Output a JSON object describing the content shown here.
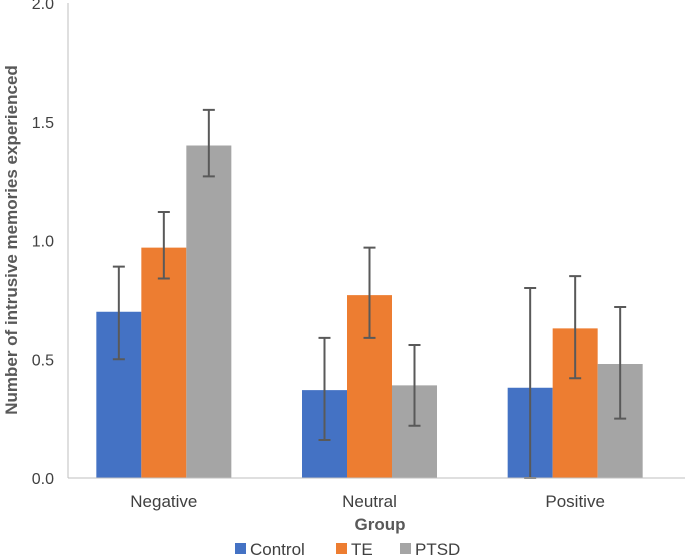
{
  "chart_data": {
    "type": "bar",
    "title": "",
    "xlabel": "Group",
    "ylabel": "Number of intrusive memories experienced",
    "categories": [
      "Negative",
      "Neutral",
      "Positive"
    ],
    "series": [
      {
        "name": "Control",
        "color": "#4472C4",
        "values": [
          0.7,
          0.37,
          0.38
        ],
        "error_low": [
          0.5,
          0.16,
          0.0
        ],
        "error_high": [
          0.89,
          0.59,
          0.8
        ]
      },
      {
        "name": "TE",
        "color": "#ED7D31",
        "values": [
          0.97,
          0.77,
          0.63
        ],
        "error_low": [
          0.84,
          0.59,
          0.42
        ],
        "error_high": [
          1.12,
          0.97,
          0.85
        ]
      },
      {
        "name": "PTSD",
        "color": "#A5A5A5",
        "values": [
          1.4,
          0.39,
          0.48
        ],
        "error_low": [
          1.27,
          0.22,
          0.25
        ],
        "error_high": [
          1.55,
          0.56,
          0.72
        ]
      }
    ],
    "ylim": [
      0.0,
      2.0
    ],
    "yticks": [
      "0.0",
      "0.5",
      "1.0",
      "1.5",
      "2.0"
    ],
    "grid": false,
    "legend_position": "bottom"
  }
}
